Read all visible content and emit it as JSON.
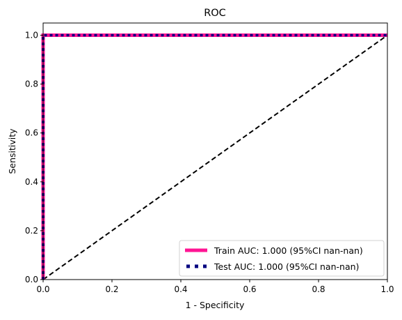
{
  "chart_data": {
    "type": "line",
    "title": "ROC",
    "xlabel": "1 - Specificity",
    "ylabel": "Sensitivity",
    "xlim": [
      0.0,
      1.0
    ],
    "ylim": [
      0.0,
      1.05
    ],
    "xticks": [
      0.0,
      0.2,
      0.4,
      0.6,
      0.8,
      1.0
    ],
    "yticks": [
      0.0,
      0.2,
      0.4,
      0.6,
      0.8,
      1.0
    ],
    "xtick_labels": [
      "0.0",
      "0.2",
      "0.4",
      "0.6",
      "0.8",
      "1.0"
    ],
    "ytick_labels": [
      "0.0",
      "0.2",
      "0.4",
      "0.6",
      "0.8",
      "1.0"
    ],
    "grid": false,
    "legend_position": "lower-right",
    "series": [
      {
        "name": "Train AUC: 1.000 (95%CI nan-nan)",
        "color": "#ff1493",
        "style": "solid",
        "x": [
          0.0,
          0.0,
          1.0
        ],
        "y": [
          0.0,
          1.0,
          1.0
        ]
      },
      {
        "name": "Test AUC: 1.000 (95%CI nan-nan)",
        "color": "#000080",
        "style": "dotted",
        "x": [
          0.0,
          0.0,
          1.0
        ],
        "y": [
          0.0,
          1.0,
          1.0
        ]
      }
    ],
    "reference_line": {
      "color": "#000000",
      "style": "dashed",
      "x": [
        0.0,
        1.0
      ],
      "y": [
        0.0,
        1.0
      ]
    }
  }
}
